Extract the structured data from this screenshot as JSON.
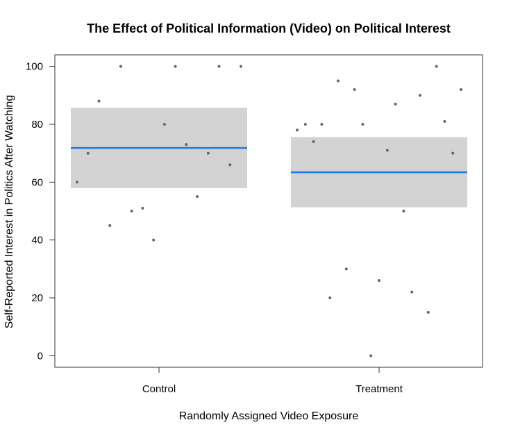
{
  "chart_data": {
    "type": "scatter",
    "title": "The Effect of Political Information (Video) on Political Interest",
    "xlabel": "Randomly Assigned Video Exposure",
    "ylabel": "Self-Reported Interest in Politics After Watching",
    "ylim": [
      -4,
      104
    ],
    "yticks": [
      0,
      20,
      40,
      60,
      80,
      100
    ],
    "categories": [
      "Control",
      "Treatment"
    ],
    "grid": false,
    "colors": {
      "band": "#d3d3d3",
      "mean_line": "#1f78e8",
      "points": "#666666"
    },
    "groups": [
      {
        "category": "Control",
        "mean": 71.8,
        "ci": [
          57.9,
          85.7
        ],
        "points": [
          60,
          70,
          88,
          45,
          100,
          50,
          51,
          40,
          80,
          100,
          73,
          55,
          70,
          100,
          66,
          100
        ]
      },
      {
        "category": "Treatment",
        "mean": 63.4,
        "ci": [
          51.3,
          75.6
        ],
        "points": [
          78,
          80,
          74,
          80,
          20,
          95,
          30,
          92,
          80,
          0,
          26,
          71,
          87,
          50,
          22,
          90,
          15,
          100,
          81,
          70,
          92
        ]
      }
    ]
  }
}
